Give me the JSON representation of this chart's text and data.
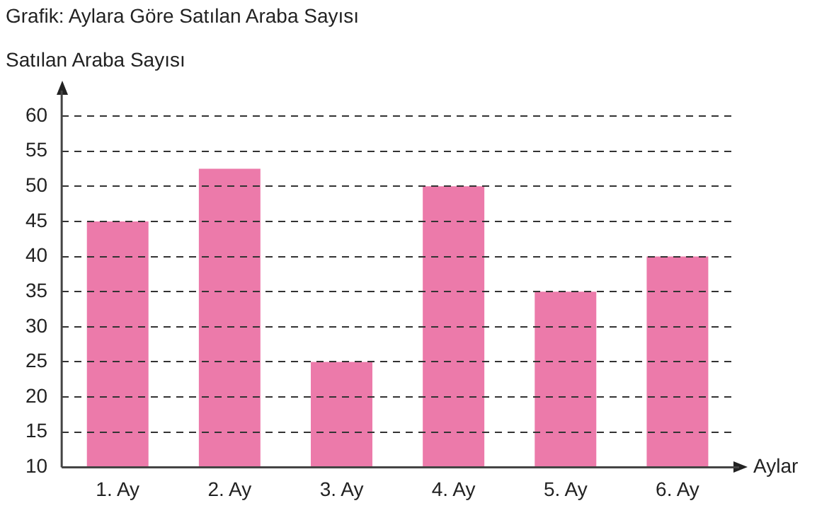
{
  "chart_data": {
    "type": "bar",
    "title": "Grafik: Aylara Göre Satılan Araba Sayısı",
    "ylabel": "Satılan Araba Sayısı",
    "xlabel": "Aylar",
    "categories": [
      "1. Ay",
      "2. Ay",
      "3. Ay",
      "4. Ay",
      "5. Ay",
      "6. Ay"
    ],
    "values": [
      45,
      52.5,
      25,
      50,
      35,
      40
    ],
    "color": "#ec7aaa",
    "ylim": [
      10,
      60
    ],
    "yticks": [
      10,
      15,
      20,
      25,
      30,
      35,
      40,
      45,
      50,
      55,
      60
    ],
    "grid": "y",
    "legend": false
  }
}
